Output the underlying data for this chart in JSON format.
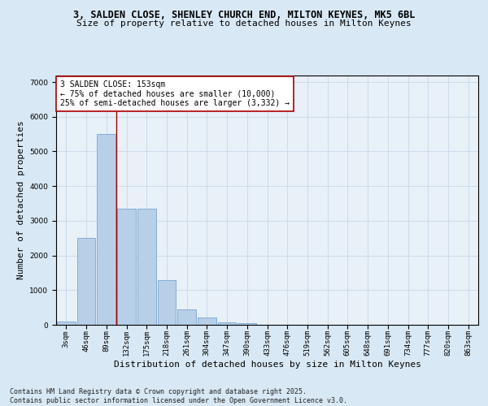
{
  "title_line1": "3, SALDEN CLOSE, SHENLEY CHURCH END, MILTON KEYNES, MK5 6BL",
  "title_line2": "Size of property relative to detached houses in Milton Keynes",
  "xlabel": "Distribution of detached houses by size in Milton Keynes",
  "ylabel": "Number of detached properties",
  "categories": [
    "3sqm",
    "46sqm",
    "89sqm",
    "132sqm",
    "175sqm",
    "218sqm",
    "261sqm",
    "304sqm",
    "347sqm",
    "390sqm",
    "433sqm",
    "476sqm",
    "519sqm",
    "562sqm",
    "605sqm",
    "648sqm",
    "691sqm",
    "734sqm",
    "777sqm",
    "820sqm",
    "863sqm"
  ],
  "values": [
    100,
    2500,
    5500,
    3350,
    3350,
    1280,
    450,
    200,
    80,
    50,
    0,
    0,
    0,
    0,
    0,
    0,
    0,
    0,
    0,
    0,
    0
  ],
  "bar_color": "#b8cfe8",
  "bar_edgecolor": "#6699cc",
  "vline_color": "#aa0000",
  "vline_pos": 2.5,
  "annotation_text": "3 SALDEN CLOSE: 153sqm\n← 75% of detached houses are smaller (10,000)\n25% of semi-detached houses are larger (3,332) →",
  "annotation_box_edgecolor": "#aa0000",
  "annotation_box_facecolor": "#ffffff",
  "ylim": [
    0,
    7200
  ],
  "yticks": [
    0,
    1000,
    2000,
    3000,
    4000,
    5000,
    6000,
    7000
  ],
  "grid_color": "#c8d8e8",
  "background_color": "#d8e8f4",
  "plot_bg_color": "#e8f0f8",
  "footer_text": "Contains HM Land Registry data © Crown copyright and database right 2025.\nContains public sector information licensed under the Open Government Licence v3.0.",
  "title_fontsize": 8.5,
  "subtitle_fontsize": 8.0,
  "axis_label_fontsize": 8.0,
  "tick_fontsize": 6.5,
  "annotation_fontsize": 7.0,
  "footer_fontsize": 6.0
}
